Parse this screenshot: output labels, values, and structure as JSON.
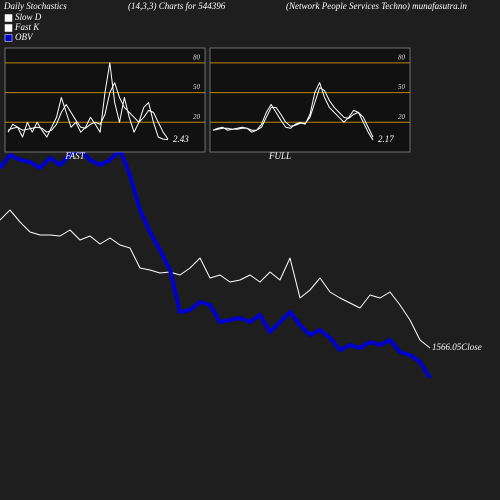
{
  "header": {
    "left": "Daily Stochastics",
    "center": "(14,3,3) Charts for 544396",
    "right": "(Network People  Services Techno) munafasutra.in"
  },
  "chart_data": [
    {
      "type": "line",
      "title": "FAST",
      "ylim": [
        -10,
        95
      ],
      "yticks": [
        20,
        50,
        80
      ],
      "grid_color": "#b8860b",
      "grid": true,
      "series": [
        {
          "name": "Slow D",
          "color": "#ffffff",
          "values": [
            12,
            14,
            15,
            12,
            13,
            14,
            15,
            14,
            10,
            12,
            18,
            30,
            38,
            30,
            22,
            15,
            14,
            18,
            20,
            18,
            28,
            50,
            60,
            45,
            35,
            30,
            25,
            20,
            25,
            32,
            30,
            20,
            10,
            3
          ]
        },
        {
          "name": "Fast K",
          "color": "#ffffff",
          "values": [
            10,
            18,
            15,
            5,
            20,
            10,
            20,
            12,
            5,
            15,
            25,
            45,
            30,
            15,
            20,
            10,
            15,
            25,
            18,
            10,
            50,
            80,
            40,
            20,
            45,
            25,
            10,
            20,
            35,
            40,
            20,
            5,
            3,
            2.43
          ]
        }
      ]
    },
    {
      "type": "line",
      "title": "FULL",
      "ylim": [
        -10,
        95
      ],
      "yticks": [
        20,
        50,
        80
      ],
      "grid_color": "#b8860b",
      "grid": true,
      "series": [
        {
          "color": "#ffffff",
          "values": [
            12,
            13,
            14,
            14,
            13,
            13,
            14,
            14,
            12,
            12,
            15,
            25,
            35,
            35,
            28,
            20,
            16,
            17,
            19,
            19,
            25,
            40,
            55,
            52,
            42,
            35,
            30,
            25,
            24,
            28,
            30,
            25,
            15,
            5
          ]
        },
        {
          "color": "#ffffff",
          "values": [
            12,
            14,
            15,
            12,
            13,
            14,
            15,
            14,
            10,
            12,
            18,
            30,
            38,
            30,
            22,
            15,
            14,
            18,
            20,
            18,
            28,
            50,
            60,
            45,
            35,
            30,
            25,
            20,
            25,
            32,
            30,
            20,
            10,
            2.17
          ]
        }
      ]
    },
    {
      "type": "line",
      "ylim": [
        806,
        3306
      ],
      "y2lim": [
        -100,
        400
      ],
      "series": [
        {
          "name": "Close",
          "color": "#ffffff",
          "width": 1,
          "values": [
            2206,
            2256,
            2196,
            2146,
            2131,
            2131,
            2126,
            2156,
            2106,
            2126,
            2086,
            2116,
            2081,
            2066,
            1966,
            1956,
            1941,
            1946,
            1931,
            1966,
            2016,
            1916,
            1931,
            1896,
            1906,
            1931,
            1896,
            1946,
            1906,
            2016,
            1816,
            1856,
            1916,
            1846,
            1816,
            1791,
            1766,
            1831,
            1816,
            1846,
            1781,
            1706,
            1606,
            1566.05
          ]
        },
        {
          "name": "OBV",
          "color": "#0000cc",
          "width": 4,
          "axis": "y2",
          "values": [
            232,
            245,
            240,
            238,
            232,
            242,
            235,
            245,
            250,
            240,
            235,
            240,
            250,
            225,
            190,
            168,
            150,
            130,
            88,
            90,
            98,
            95,
            78,
            80,
            82,
            78,
            85,
            68,
            78,
            88,
            75,
            65,
            70,
            62,
            50,
            55,
            52,
            58,
            55,
            60,
            48,
            45,
            38,
            22
          ]
        }
      ]
    }
  ]
}
